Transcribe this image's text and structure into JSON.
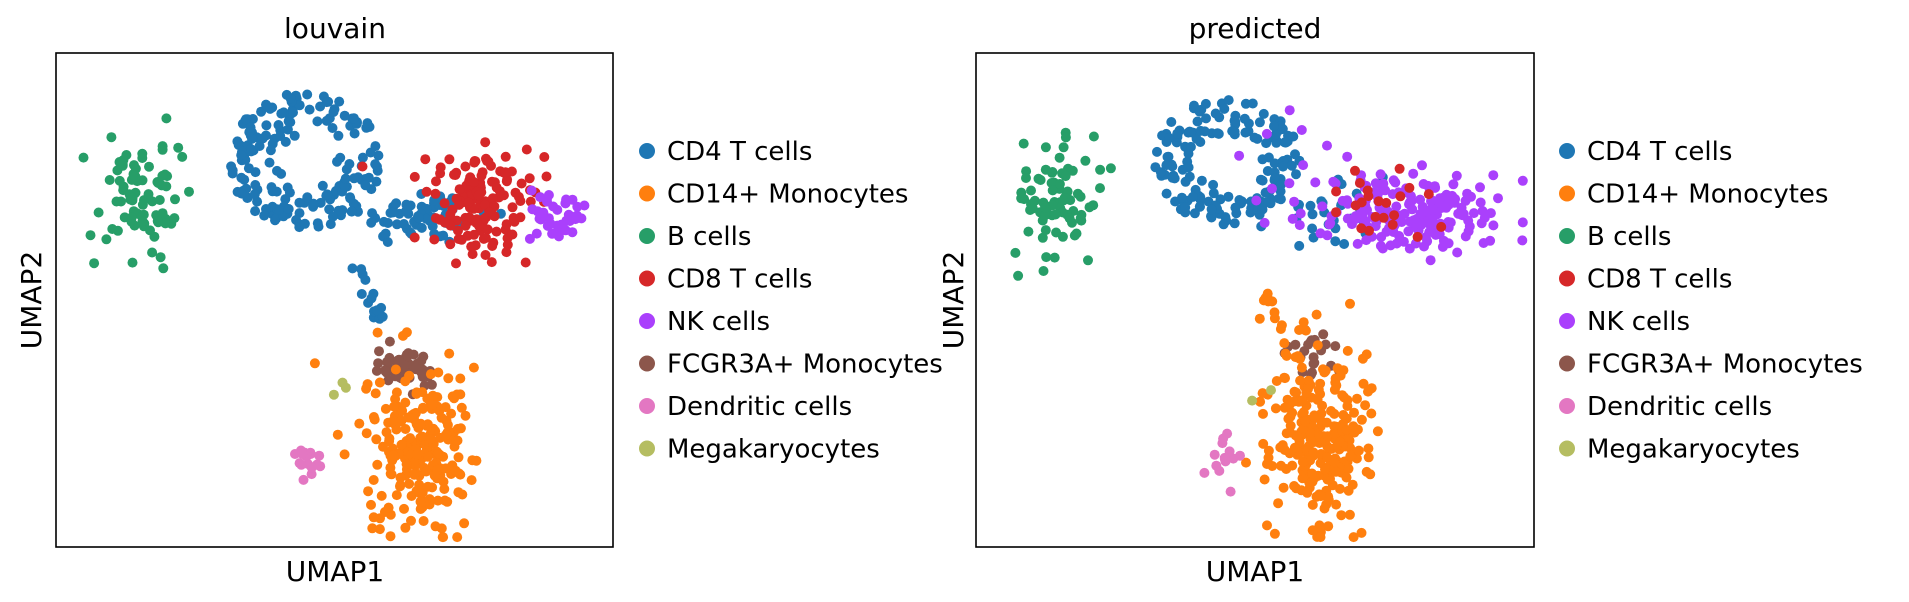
{
  "legend": [
    {
      "label": "CD4 T cells",
      "color": "#1f77b4"
    },
    {
      "label": "CD14+ Monocytes",
      "color": "#ff7f0e"
    },
    {
      "label": "B cells",
      "color": "#279e68"
    },
    {
      "label": "CD8 T cells",
      "color": "#d62728"
    },
    {
      "label": "NK cells",
      "color": "#aa40fc"
    },
    {
      "label": "FCGR3A+ Monocytes",
      "color": "#8c564b"
    },
    {
      "label": "Dendritic cells",
      "color": "#e377c2"
    },
    {
      "label": "Megakaryocytes",
      "color": "#b5bd61"
    }
  ],
  "chart_data": [
    {
      "type": "scatter",
      "title": "louvain",
      "xlabel": "UMAP1",
      "ylabel": "UMAP2",
      "xlim": [
        0,
        100
      ],
      "ylim": [
        0,
        100
      ],
      "grid": false,
      "legend_position": "right",
      "clusters": [
        {
          "name": "CD4 T cells",
          "color": "#1f77b4",
          "n": 180,
          "spread": "ring",
          "cx": 45,
          "cy": 78,
          "sx": 14,
          "sy": 14
        },
        {
          "name": "CD4 T cells",
          "color": "#1f77b4",
          "n": 70,
          "spread": "gauss",
          "cx": 66,
          "cy": 67,
          "sx": 6,
          "sy": 3
        },
        {
          "name": "CD4 T cells",
          "color": "#1f77b4",
          "n": 14,
          "spread": "line",
          "x0": 54,
          "y0": 57,
          "x1": 58,
          "y1": 46
        },
        {
          "name": "CD8 T cells",
          "color": "#d62728",
          "n": 150,
          "spread": "gauss",
          "cx": 76,
          "cy": 70,
          "sx": 5,
          "sy": 5
        },
        {
          "name": "NK cells",
          "color": "#aa40fc",
          "n": 40,
          "spread": "gauss",
          "cx": 90,
          "cy": 67,
          "sx": 2.5,
          "sy": 2.2
        },
        {
          "name": "B cells",
          "color": "#279e68",
          "n": 80,
          "spread": "gauss",
          "cx": 15,
          "cy": 70,
          "sx": 3.5,
          "sy": 6
        },
        {
          "name": "FCGR3A+ Monocytes",
          "color": "#8c564b",
          "n": 50,
          "spread": "gauss",
          "cx": 62,
          "cy": 37,
          "sx": 2.6,
          "sy": 2.6
        },
        {
          "name": "CD14+ Monocytes",
          "color": "#ff7f0e",
          "n": 230,
          "spread": "gauss",
          "cx": 65,
          "cy": 20,
          "sx": 4.8,
          "sy": 7.8
        },
        {
          "name": "Dendritic cells",
          "color": "#e377c2",
          "n": 16,
          "spread": "gauss",
          "cx": 45,
          "cy": 18,
          "sx": 1.3,
          "sy": 2.5
        },
        {
          "name": "Megakaryocytes",
          "color": "#b5bd61",
          "n": 3,
          "spread": "gauss",
          "cx": 52,
          "cy": 31,
          "sx": 1,
          "sy": 1.2
        }
      ]
    },
    {
      "type": "scatter",
      "title": "predicted",
      "xlabel": "UMAP1",
      "ylabel": "UMAP2",
      "xlim": [
        0,
        100
      ],
      "ylim": [
        0,
        100
      ],
      "grid": false,
      "legend_position": "right",
      "clusters": [
        {
          "name": "CD4 T cells",
          "color": "#1f77b4",
          "n": 160,
          "spread": "ring",
          "cx": 45,
          "cy": 78,
          "sx": 13,
          "sy": 13
        },
        {
          "name": "CD4 T cells",
          "color": "#1f77b4",
          "n": 30,
          "spread": "gauss",
          "cx": 64,
          "cy": 68,
          "sx": 6,
          "sy": 4
        },
        {
          "name": "NK cells",
          "color": "#aa40fc",
          "n": 190,
          "spread": "gauss",
          "cx": 78,
          "cy": 68,
          "sx": 9,
          "sy": 4
        },
        {
          "name": "NK cells",
          "color": "#aa40fc",
          "n": 12,
          "spread": "gauss",
          "cx": 58,
          "cy": 78,
          "sx": 6,
          "sy": 6
        },
        {
          "name": "CD8 T cells",
          "color": "#d62728",
          "n": 22,
          "spread": "gauss",
          "cx": 72,
          "cy": 70,
          "sx": 5,
          "sy": 4
        },
        {
          "name": "B cells",
          "color": "#279e68",
          "n": 80,
          "spread": "gauss",
          "cx": 15,
          "cy": 70,
          "sx": 3.5,
          "sy": 6
        },
        {
          "name": "FCGR3A+ Monocytes",
          "color": "#8c564b",
          "n": 22,
          "spread": "gauss",
          "cx": 61,
          "cy": 39,
          "sx": 2.5,
          "sy": 2.5
        },
        {
          "name": "CD14+ Monocytes",
          "color": "#ff7f0e",
          "n": 250,
          "spread": "gauss",
          "cx": 62,
          "cy": 23,
          "sx": 4.6,
          "sy": 9
        },
        {
          "name": "CD14+ Monocytes",
          "color": "#ff7f0e",
          "n": 10,
          "spread": "line",
          "x0": 51,
          "y0": 52,
          "x1": 55,
          "y1": 44
        },
        {
          "name": "Dendritic cells",
          "color": "#e377c2",
          "n": 14,
          "spread": "gauss",
          "cx": 45,
          "cy": 18,
          "sx": 1.3,
          "sy": 2.5
        },
        {
          "name": "Megakaryocytes",
          "color": "#b5bd61",
          "n": 2,
          "spread": "gauss",
          "cx": 51,
          "cy": 32,
          "sx": 1,
          "sy": 1
        }
      ]
    }
  ]
}
